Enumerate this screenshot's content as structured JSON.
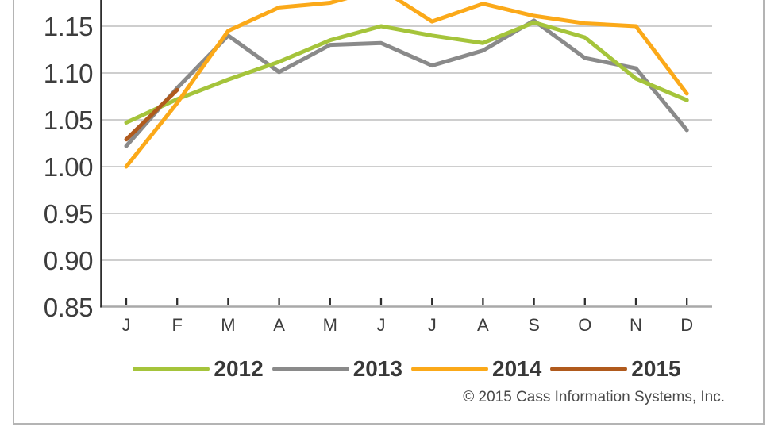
{
  "chart_data": {
    "type": "line",
    "x_categories": [
      "J",
      "F",
      "M",
      "A",
      "M",
      "J",
      "J",
      "A",
      "S",
      "O",
      "N",
      "D"
    ],
    "series": [
      {
        "name": "2012",
        "color": "#a5c43b",
        "values": [
          1.047,
          1.072,
          1.093,
          1.112,
          1.135,
          1.15,
          1.14,
          1.132,
          1.154,
          1.138,
          1.094,
          1.071
        ]
      },
      {
        "name": "2013",
        "color": "#8a8a8a",
        "values": [
          1.022,
          1.084,
          1.14,
          1.101,
          1.13,
          1.132,
          1.108,
          1.124,
          1.156,
          1.116,
          1.105,
          1.039
        ]
      },
      {
        "name": "2014",
        "color": "#fba919",
        "values": [
          1.0,
          1.068,
          1.145,
          1.17,
          1.175,
          1.19,
          1.155,
          1.174,
          1.161,
          1.153,
          1.15,
          1.078
        ]
      },
      {
        "name": "2015",
        "color": "#b05a1d",
        "values": [
          1.029,
          1.082,
          null,
          null,
          null,
          null,
          null,
          null,
          null,
          null,
          null,
          null
        ]
      }
    ],
    "y_ticks": [
      {
        "label": "1.15",
        "value": 1.15
      },
      {
        "label": "1.10",
        "value": 1.1
      },
      {
        "label": "1.05",
        "value": 1.05
      },
      {
        "label": "1.00",
        "value": 1.0
      },
      {
        "label": "0.95",
        "value": 0.95
      },
      {
        "label": "0.90",
        "value": 0.9
      },
      {
        "label": "0.85",
        "value": 0.85
      }
    ],
    "ylim_visible": [
      0.85,
      1.178
    ],
    "grid": true,
    "legend_position": "bottom",
    "top_clipped": true
  },
  "legend": {
    "items": [
      {
        "label": "2012"
      },
      {
        "label": "2013"
      },
      {
        "label": "2014"
      },
      {
        "label": "2015"
      }
    ]
  },
  "footer": {
    "copyright": "© 2015 Cass Information Systems, Inc."
  },
  "colors": {
    "series_2012": "#a5c43b",
    "series_2013": "#8a8a8a",
    "series_2014": "#fba919",
    "series_2015": "#b05a1d",
    "gridline": "#c7c7c7",
    "bottom_axis": "#a9a9a9",
    "y_axis": "#2e2e2e",
    "frame_border": "#b4b4b4",
    "axis_text": "#3d3d3d",
    "legend_text": "#383838",
    "copyright_text": "#4a4a4a"
  }
}
